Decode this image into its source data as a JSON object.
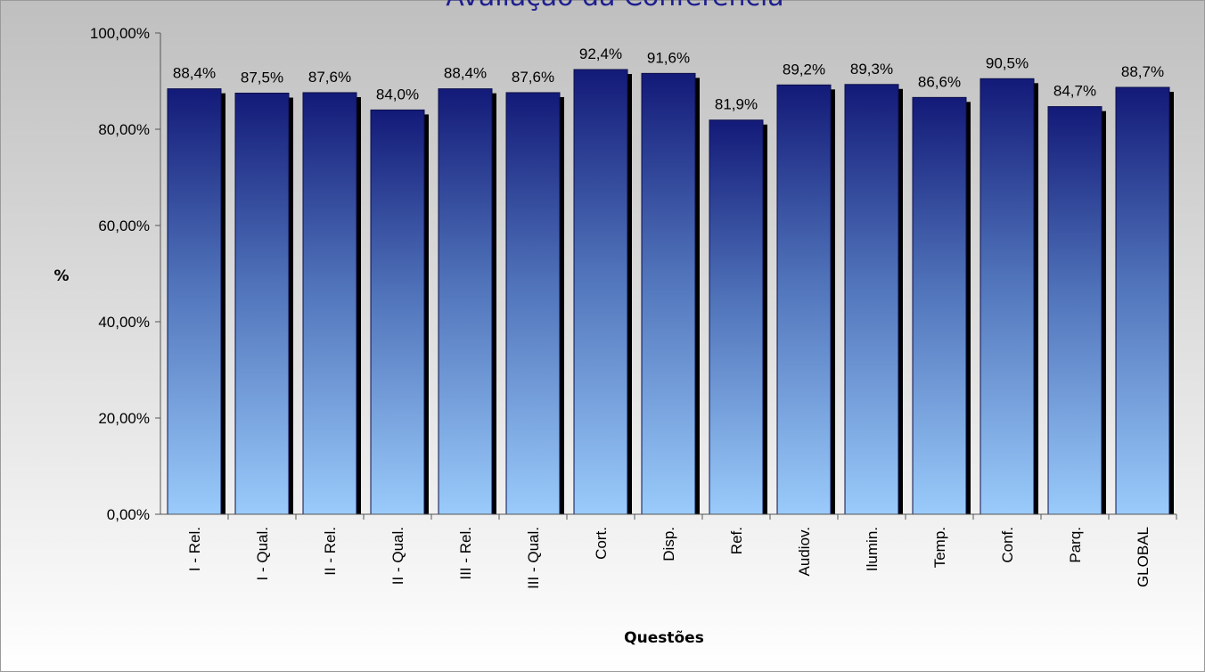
{
  "chart_data": {
    "type": "bar",
    "title": "Avaliação da Conferência",
    "xlabel": "Questões",
    "ylabel": "%",
    "ylim": [
      0,
      100
    ],
    "yticks": [
      "0,00%",
      "20,00%",
      "40,00%",
      "60,00%",
      "80,00%",
      "100,00%"
    ],
    "ytick_values": [
      0,
      20,
      40,
      60,
      80,
      100
    ],
    "categories": [
      "I - Rel.",
      "I - Qual.",
      "II - Rel.",
      "II - Qual.",
      "III - Rel.",
      "III - Qual.",
      "Cort.",
      "Disp.",
      "Ref.",
      "Audiov.",
      "Ilumin.",
      "Temp.",
      "Conf.",
      "Parq.",
      "GLOBAL"
    ],
    "values": [
      88.4,
      87.5,
      87.6,
      84.0,
      88.4,
      87.6,
      92.4,
      91.6,
      81.9,
      89.2,
      89.3,
      86.6,
      90.5,
      84.7,
      88.7
    ],
    "value_labels": [
      "88,4%",
      "87,5%",
      "87,6%",
      "84,0%",
      "88,4%",
      "87,6%",
      "92,4%",
      "91,6%",
      "81,9%",
      "89,2%",
      "89,3%",
      "86,6%",
      "90,5%",
      "84,7%",
      "88,7%"
    ],
    "grid": false,
    "legend": "none",
    "colors": {
      "bar_top": "#131a78",
      "bar_bottom": "#9acbfb",
      "plot_bg_top": "#bfbfbf",
      "plot_bg_bottom": "#ffffff",
      "title": "#1f1f8f"
    }
  }
}
